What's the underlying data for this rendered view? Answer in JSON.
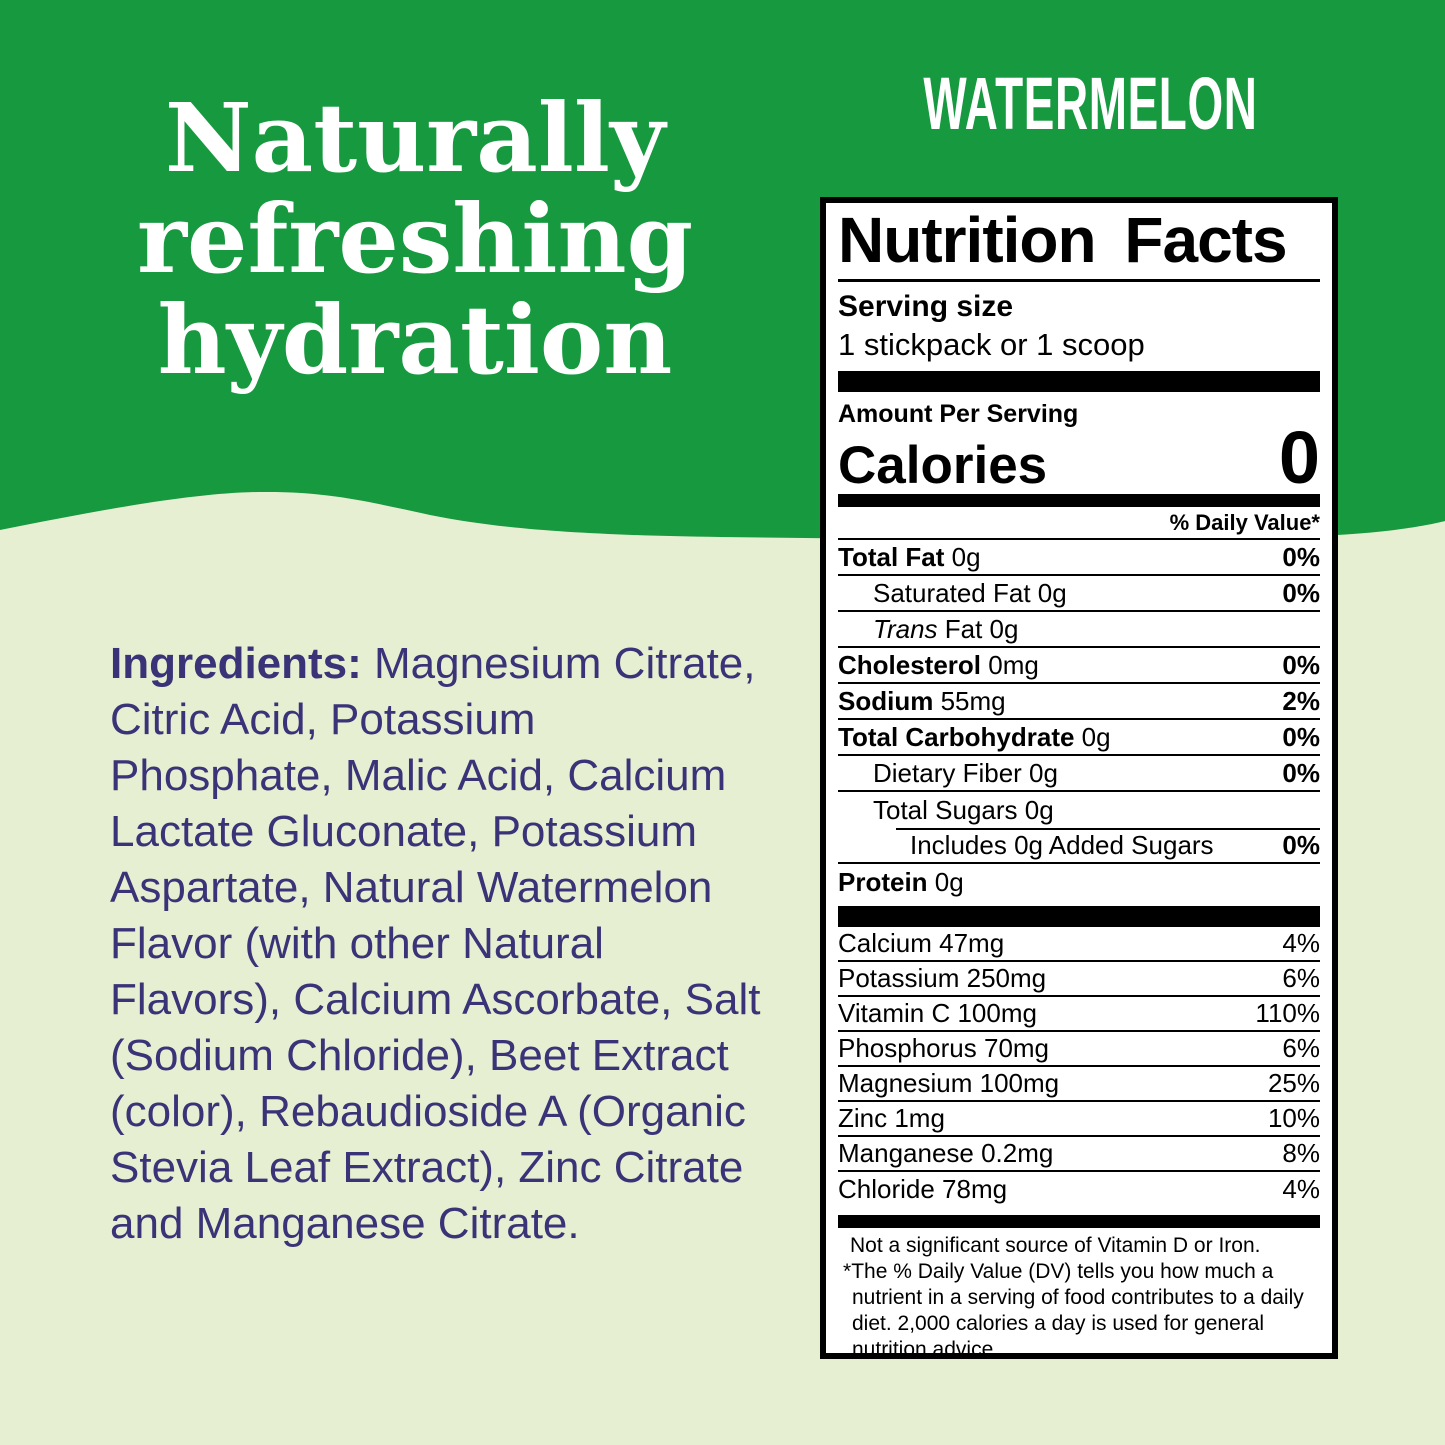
{
  "colors": {
    "green": "#17993F",
    "light_green": "#E6EFD2",
    "purple": "#3B3377",
    "white": "#FFFFFF",
    "black": "#000000"
  },
  "hero": {
    "headline_lines": [
      "Naturally",
      "refreshing",
      "hydration"
    ],
    "flavor": "WATERMELON"
  },
  "ingredients": {
    "label": "Ingredients:",
    "text": " Magnesium Citrate, Citric Acid, Potassium Phosphate, Malic Acid, Calcium Lactate Gluconate, Potassium Aspartate, Natural Watermelon Flavor (with other Natural Flavors), Calcium Ascorbate, Salt (Sodium Chloride), Beet Extract (color), Rebaudioside A (Organic Stevia Leaf Extract), Zinc Citrate and Manganese Citrate."
  },
  "nutrition": {
    "title": "Nutrition Facts",
    "serving_size_label": "Serving size",
    "serving_size_value": "1 stickpack or 1 scoop",
    "amount_per_serving": "Amount Per Serving",
    "calories_label": "Calories",
    "calories_value": "0",
    "daily_value_header": "% Daily Value*",
    "rows": [
      {
        "name": "Total Fat",
        "name_style": "bold",
        "rest": "0g",
        "dv": "0%",
        "indent": 0
      },
      {
        "name": "Saturated Fat",
        "name_style": "plain",
        "rest": "0g",
        "dv": "0%",
        "indent": 1
      },
      {
        "name": "Trans",
        "name_style": "italic",
        "rest": "Fat 0g",
        "dv": "",
        "indent": 1
      },
      {
        "name": "Cholesterol",
        "name_style": "bold",
        "rest": "0mg",
        "dv": "0%",
        "indent": 0
      },
      {
        "name": "Sodium",
        "name_style": "bold",
        "rest": "55mg",
        "dv": "2%",
        "indent": 0
      },
      {
        "name": "Total Carbohydrate",
        "name_style": "bold",
        "rest": "0g",
        "dv": "0%",
        "indent": 0
      },
      {
        "name": "Dietary Fiber",
        "name_style": "plain",
        "rest": "0g",
        "dv": "0%",
        "indent": 1
      },
      {
        "name": "Total Sugars",
        "name_style": "plain",
        "rest": "0g",
        "dv": "",
        "indent": 1,
        "no_rule_below": true
      },
      {
        "name": "Includes 0g Added Sugars",
        "name_style": "plain",
        "rest": "",
        "dv": "0%",
        "indent": 2,
        "partial_rule_above": true
      },
      {
        "name": "Protein",
        "name_style": "bold",
        "rest": "0g",
        "dv": "",
        "indent": 0,
        "last": true
      }
    ],
    "micronutrients": [
      {
        "label": "Calcium 47mg",
        "dv": "4%"
      },
      {
        "label": "Potassium 250mg",
        "dv": "6%"
      },
      {
        "label": "Vitamin C 100mg",
        "dv": "110%"
      },
      {
        "label": "Phosphorus 70mg",
        "dv": "6%"
      },
      {
        "label": "Magnesium 100mg",
        "dv": "25%"
      },
      {
        "label": "Zinc 1mg",
        "dv": "10%"
      },
      {
        "label": "Manganese 0.2mg",
        "dv": "8%"
      },
      {
        "label": "Chloride 78mg",
        "dv": "4%"
      }
    ],
    "footnote1": "Not a significant source of Vitamin D or Iron.",
    "footnote2_star": "*",
    "footnote2": "The % Daily Value (DV) tells you how much a nutrient in a serving of food contributes to a daily diet. 2,000 calories a day is used for general nutrition advice."
  }
}
